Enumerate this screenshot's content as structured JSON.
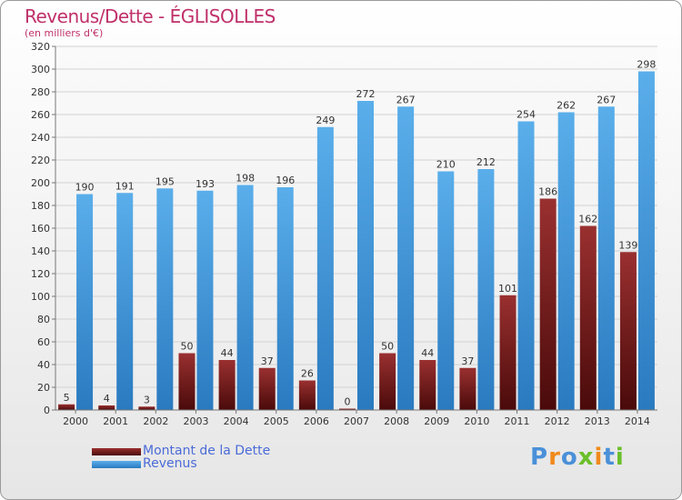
{
  "title": "Revenus/Dette - ÉGLISOLLES",
  "subtitle": "(en milliers d'€)",
  "chart_data": {
    "type": "bar",
    "categories": [
      "2000",
      "2001",
      "2002",
      "2003",
      "2004",
      "2005",
      "2006",
      "2007",
      "2008",
      "2009",
      "2010",
      "2011",
      "2012",
      "2013",
      "2014"
    ],
    "series": [
      {
        "name": "Montant de la Dette",
        "color": "#7a1a1a",
        "values": [
          5,
          4,
          3,
          50,
          44,
          37,
          26,
          0,
          50,
          44,
          37,
          101,
          186,
          162,
          139
        ]
      },
      {
        "name": "Revenus",
        "color": "#4a9fe0",
        "values": [
          190,
          191,
          195,
          193,
          198,
          196,
          249,
          272,
          267,
          210,
          212,
          254,
          262,
          267,
          298
        ]
      }
    ],
    "ylim": [
      0,
      320
    ],
    "ytick_step": 20,
    "grid": true,
    "legend": "bottom-left"
  },
  "legend": {
    "items": [
      {
        "label": "Montant de la Dette",
        "color": "#7a1a1a"
      },
      {
        "label": "Revenus",
        "color": "#4a9fe0"
      }
    ]
  },
  "logo": {
    "letters": [
      {
        "ch": "P",
        "color": "#4a90d9"
      },
      {
        "ch": "r",
        "color": "#f08a1c"
      },
      {
        "ch": "o",
        "color": "#4a90d9"
      },
      {
        "ch": "x",
        "color": "#6bbf2a"
      },
      {
        "ch": "i",
        "color": "#f08a1c"
      },
      {
        "ch": "t",
        "color": "#4a90d9"
      },
      {
        "ch": "i",
        "color": "#6bbf2a"
      }
    ]
  }
}
